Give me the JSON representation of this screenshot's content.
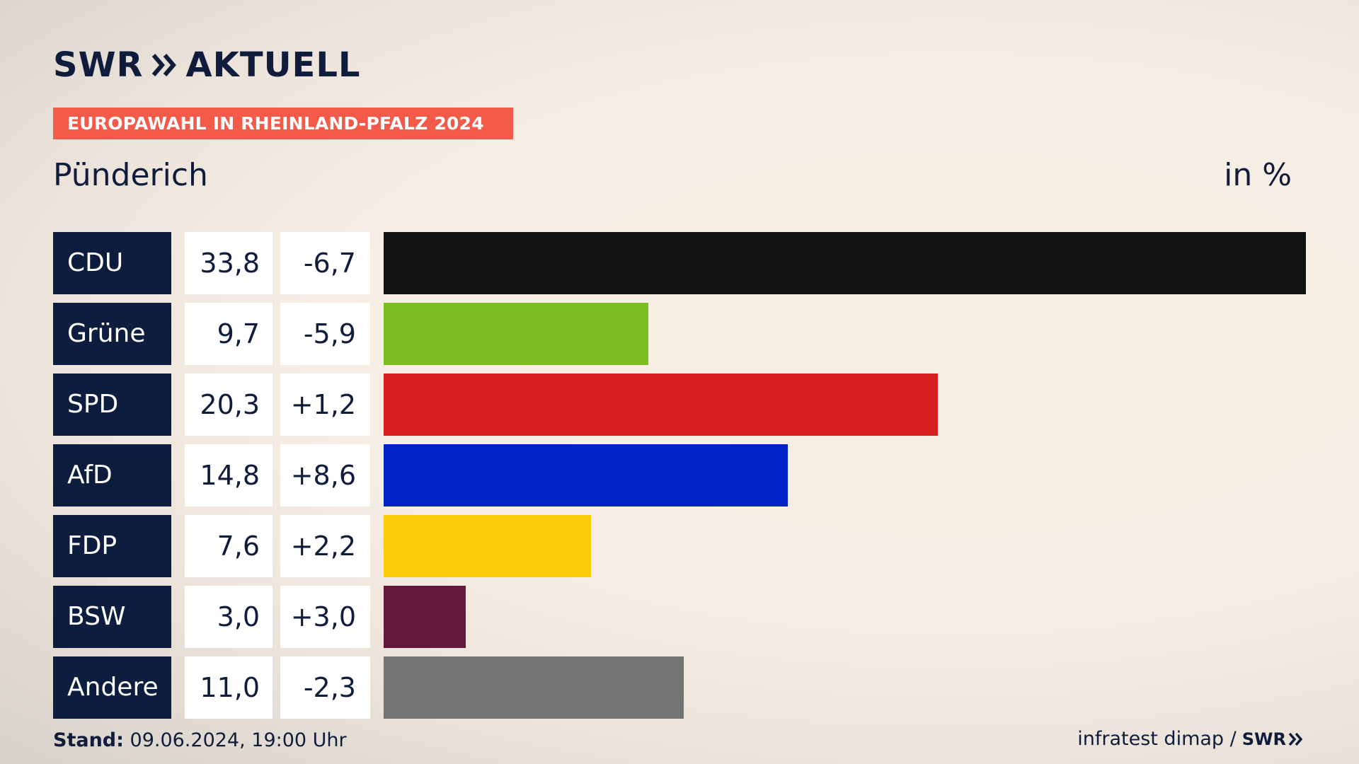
{
  "brand": {
    "logo_text": "SWR",
    "logo_suffix": "AKTUELL",
    "footer_logo_text": "SWR"
  },
  "header": {
    "election_label": "EUROPAWAHL IN RHEINLAND-PFALZ 2024",
    "place": "Pünderich",
    "unit": "in %"
  },
  "footer": {
    "stand_label": "Stand:",
    "stand_value": "09.06.2024, 19:00 Uhr",
    "source": "infratest dimap /"
  },
  "colors": {
    "CDU": "#131313",
    "Grüne": "#7bbe1f",
    "SPD": "#d81f1f",
    "AfD": "#0022c4",
    "FDP": "#ffcc0a",
    "BSW": "#66173e",
    "Andere": "#747474"
  },
  "chart_data": {
    "type": "bar",
    "orientation": "horizontal",
    "categories": [
      "CDU",
      "Grüne",
      "SPD",
      "AfD",
      "FDP",
      "BSW",
      "Andere"
    ],
    "values": [
      33.8,
      9.7,
      20.3,
      14.8,
      7.6,
      3.0,
      11.0
    ],
    "value_labels": [
      "33,8",
      "9,7",
      "20,3",
      "14,8",
      "7,6",
      "3,0",
      "11,0"
    ],
    "changes": [
      -6.7,
      -5.9,
      1.2,
      8.6,
      2.2,
      3.0,
      -2.3
    ],
    "change_labels": [
      "-6,7",
      "-5,9",
      "+1,2",
      "+8,6",
      "+2,2",
      "+3,0",
      "-2,3"
    ],
    "title": "Pünderich",
    "unit": "in %",
    "grid": false
  }
}
